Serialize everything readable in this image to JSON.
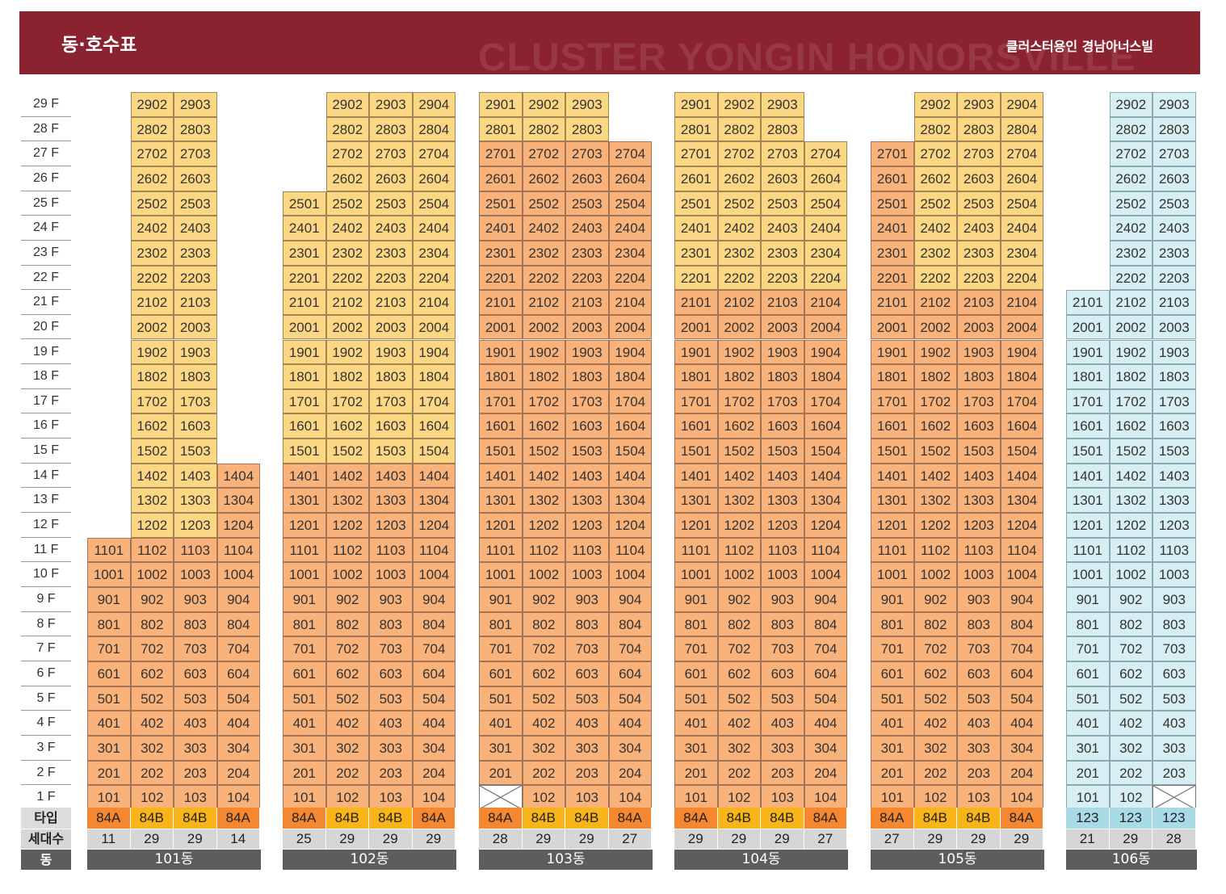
{
  "header": {
    "title": "동·호수표",
    "brand": "클러스터용인 경남아너스빌",
    "watermark": "CLUSTER YONGIN HONORSVILLE"
  },
  "floor_labels": [
    "29 F",
    "28 F",
    "27 F",
    "26 F",
    "25 F",
    "24 F",
    "23 F",
    "22 F",
    "21 F",
    "20 F",
    "19 F",
    "18 F",
    "17 F",
    "16 F",
    "15 F",
    "14 F",
    "13 F",
    "12 F",
    "11 F",
    "10 F",
    "9 F",
    "8 F",
    "7 F",
    "6 F",
    "5 F",
    "4 F",
    "3 F",
    "2 F",
    "1 F"
  ],
  "row_labels": {
    "type": "타입",
    "households": "세대수",
    "building": "동"
  },
  "colors": {
    "header": "#8b2230",
    "yellow": "#fcd783",
    "orange": "#f9b27a",
    "blue": "#d7eef3",
    "type_84A": "#f4872f",
    "type_84B": "#f8b418",
    "type_123": "#a9dbe7",
    "households_bg": "#d6d6d6",
    "building_bg": "#5d5d5d"
  },
  "buildings": [
    {
      "name": "101동",
      "lines": [
        {
          "type": "84A",
          "households": "11",
          "min": 1,
          "max": 11,
          "missing": []
        },
        {
          "type": "84B",
          "households": "29",
          "min": 1,
          "max": 29,
          "missing": []
        },
        {
          "type": "84B",
          "households": "29",
          "min": 1,
          "max": 29,
          "missing": []
        },
        {
          "type": "84A",
          "households": "14",
          "min": 1,
          "max": 14,
          "missing": []
        }
      ],
      "palette": {
        "top_color": "yellow",
        "bottom_color": "orange",
        "split_floor": 11,
        "top_lines": [
          1,
          2
        ]
      }
    },
    {
      "name": "102동",
      "lines": [
        {
          "type": "84A",
          "households": "25",
          "min": 1,
          "max": 25,
          "missing": []
        },
        {
          "type": "84B",
          "households": "29",
          "min": 1,
          "max": 29,
          "missing": []
        },
        {
          "type": "84B",
          "households": "29",
          "min": 1,
          "max": 29,
          "missing": []
        },
        {
          "type": "84A",
          "households": "29",
          "min": 1,
          "max": 29,
          "missing": []
        }
      ],
      "palette": {
        "top_color": "yellow",
        "bottom_color": "orange",
        "split_floor": 14,
        "top_lines": [
          0,
          1,
          2,
          3
        ]
      }
    },
    {
      "name": "103동",
      "lines": [
        {
          "type": "84A",
          "households": "28",
          "min": 1,
          "max": 29,
          "missing": [
            1
          ]
        },
        {
          "type": "84B",
          "households": "29",
          "min": 1,
          "max": 29,
          "missing": []
        },
        {
          "type": "84B",
          "households": "29",
          "min": 1,
          "max": 29,
          "missing": []
        },
        {
          "type": "84A",
          "households": "27",
          "min": 1,
          "max": 27,
          "missing": []
        }
      ],
      "palette": {
        "top_color": "yellow",
        "bottom_color": "orange",
        "split_floor": 27,
        "top_lines": [
          0,
          1,
          2
        ]
      }
    },
    {
      "name": "104동",
      "lines": [
        {
          "type": "84A",
          "households": "29",
          "min": 1,
          "max": 29,
          "missing": []
        },
        {
          "type": "84B",
          "households": "29",
          "min": 1,
          "max": 29,
          "missing": []
        },
        {
          "type": "84B",
          "households": "29",
          "min": 1,
          "max": 29,
          "missing": []
        },
        {
          "type": "84A",
          "households": "27",
          "min": 1,
          "max": 27,
          "missing": []
        }
      ],
      "palette": {
        "top_color": "yellow",
        "bottom_color": "orange",
        "split_floor": 21,
        "top_lines": [
          0,
          1,
          2,
          3
        ]
      }
    },
    {
      "name": "105동",
      "lines": [
        {
          "type": "84A",
          "households": "27",
          "min": 1,
          "max": 27,
          "missing": []
        },
        {
          "type": "84B",
          "households": "29",
          "min": 1,
          "max": 29,
          "missing": []
        },
        {
          "type": "84B",
          "households": "29",
          "min": 1,
          "max": 29,
          "missing": []
        },
        {
          "type": "84A",
          "households": "29",
          "min": 1,
          "max": 29,
          "missing": []
        }
      ],
      "palette": {
        "top_color": "yellow",
        "bottom_color": "orange",
        "split_floor": 21,
        "top_lines": [
          1,
          2,
          3
        ]
      }
    },
    {
      "name": "106동",
      "lines": [
        {
          "type": "123",
          "households": "21",
          "min": 1,
          "max": 21,
          "missing": []
        },
        {
          "type": "123",
          "households": "29",
          "min": 1,
          "max": 29,
          "missing": []
        },
        {
          "type": "123",
          "households": "28",
          "min": 1,
          "max": 29,
          "missing": [
            1
          ]
        }
      ],
      "palette": {
        "top_color": "blue",
        "bottom_color": "blue",
        "split_floor": 29,
        "top_lines": []
      }
    }
  ]
}
